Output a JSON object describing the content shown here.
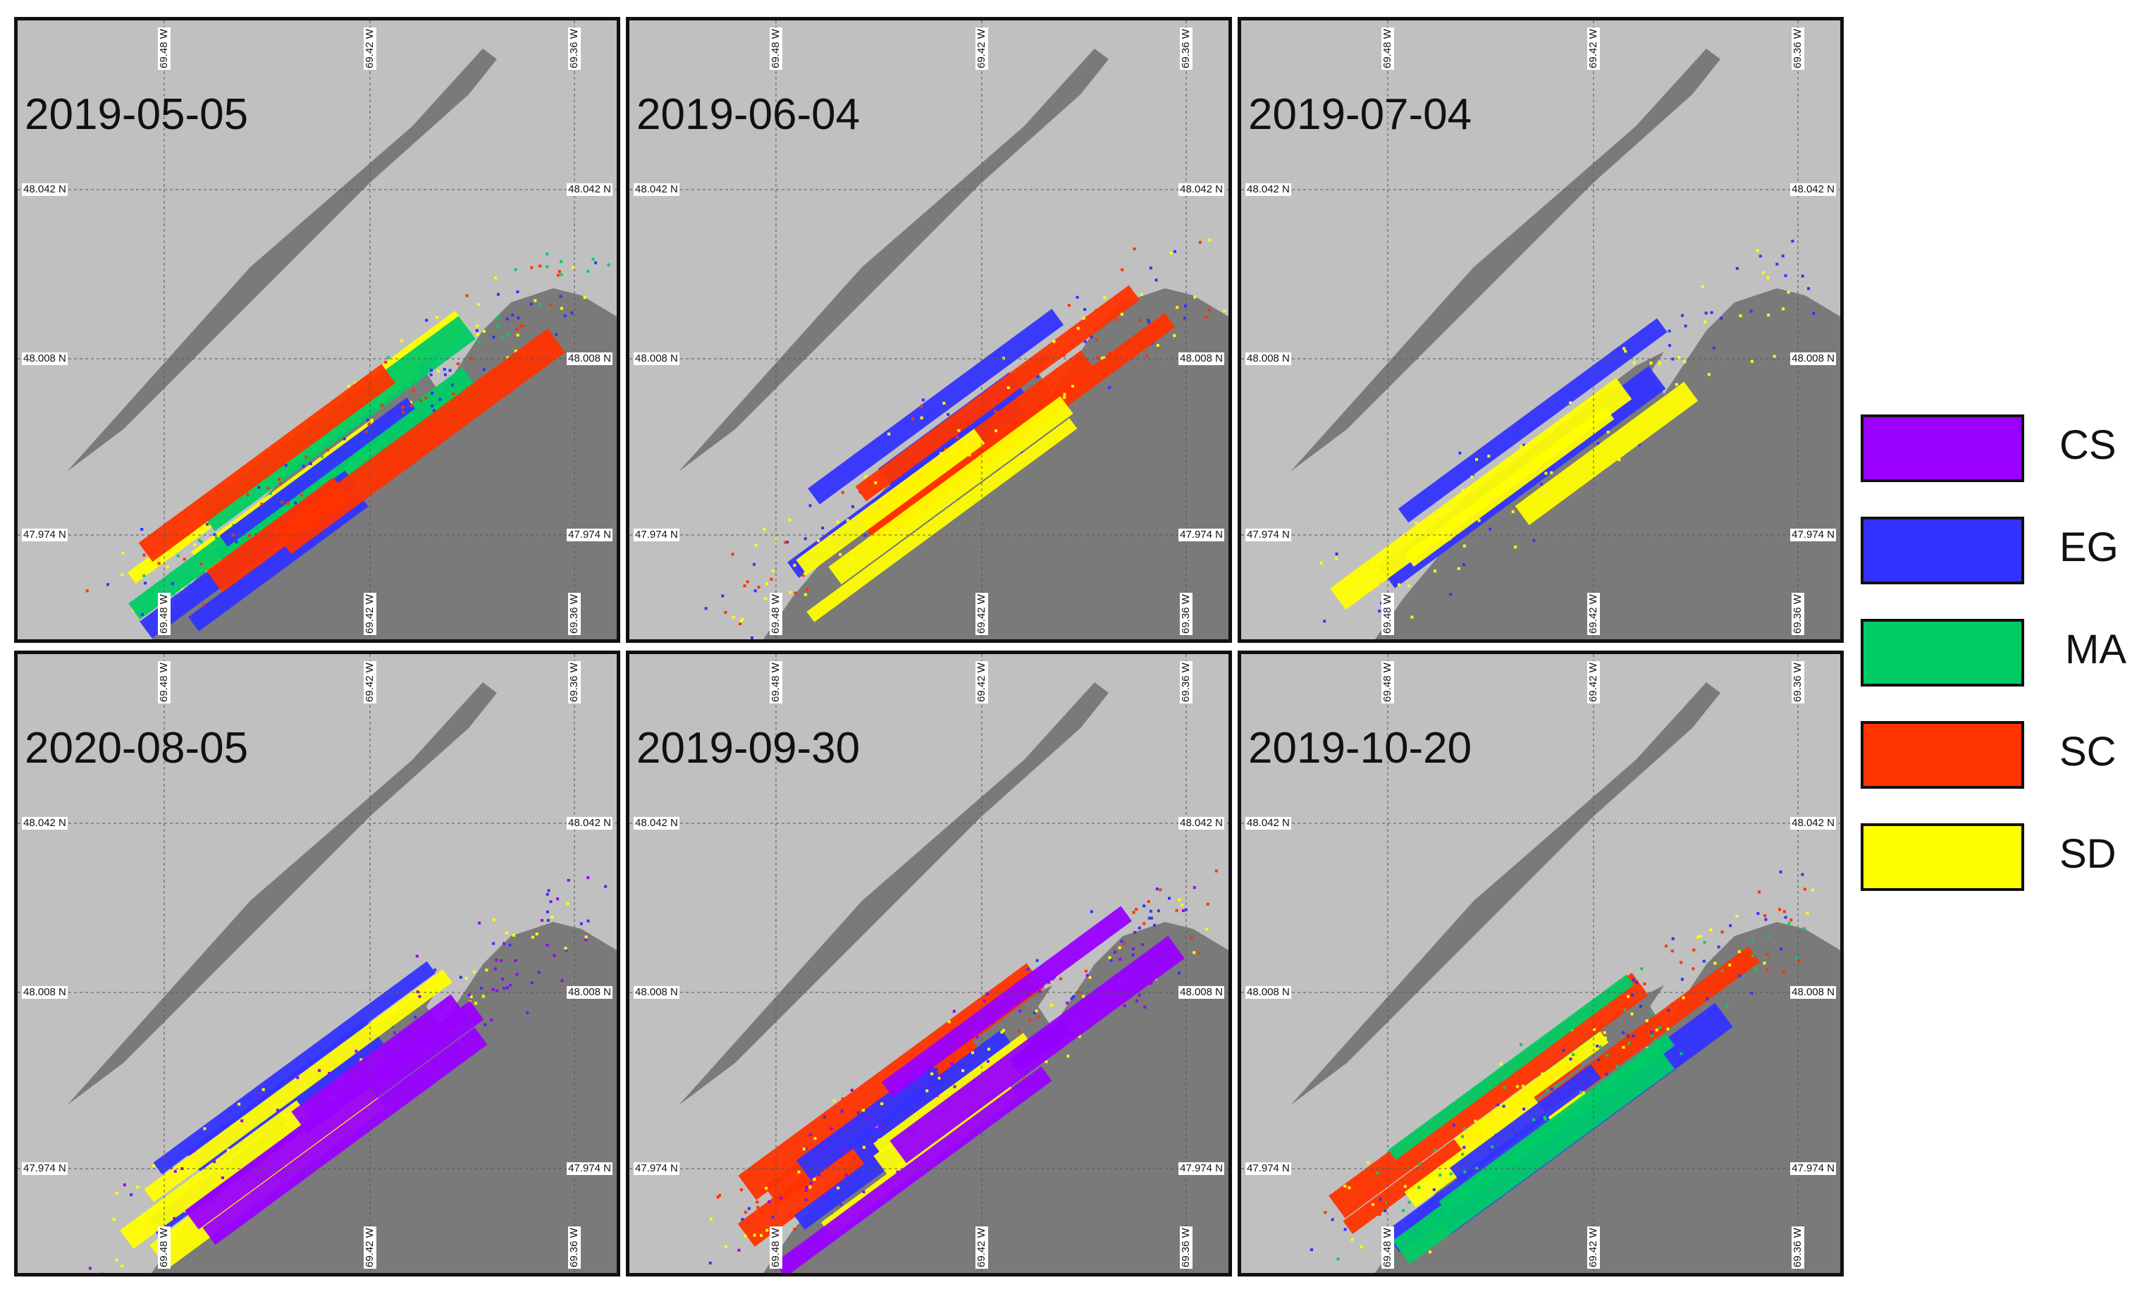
{
  "panels": [
    {
      "date": "2019-05-05",
      "key": "p1"
    },
    {
      "date": "2019-06-04",
      "key": "p2"
    },
    {
      "date": "2019-07-04",
      "key": "p3"
    },
    {
      "date": "2020-08-05",
      "key": "p4"
    },
    {
      "date": "2019-09-30",
      "key": "p5"
    },
    {
      "date": "2019-10-20",
      "key": "p6"
    }
  ],
  "graticule": {
    "lat": [
      "48.042 N",
      "48.008 N",
      "47.974 N"
    ],
    "lon": [
      "69.48 W",
      "69.42 W",
      "69.36 W"
    ]
  },
  "legend": [
    {
      "code": "CS",
      "color": "#9900ff"
    },
    {
      "code": "EG",
      "color": "#3333ff"
    },
    {
      "code": "MA",
      "color": "#00cc66"
    },
    {
      "code": "SC",
      "color": "#ff3300"
    },
    {
      "code": "SD",
      "color": "#ffff00"
    }
  ],
  "colors": {
    "land": "#7a7a7a",
    "water": "#c0c0c0",
    "light_land": "#b3b3b3"
  },
  "dominant_classes": {
    "p1": [
      "SD",
      "MA",
      "EG",
      "SC"
    ],
    "p2": [
      "EG",
      "SC",
      "SD"
    ],
    "p3": [
      "EG",
      "SD"
    ],
    "p4": [
      "EG",
      "SD",
      "CS"
    ],
    "p5": [
      "SC",
      "EG",
      "SD",
      "CS"
    ],
    "p6": [
      "SC",
      "SD",
      "EG",
      "MA"
    ]
  }
}
